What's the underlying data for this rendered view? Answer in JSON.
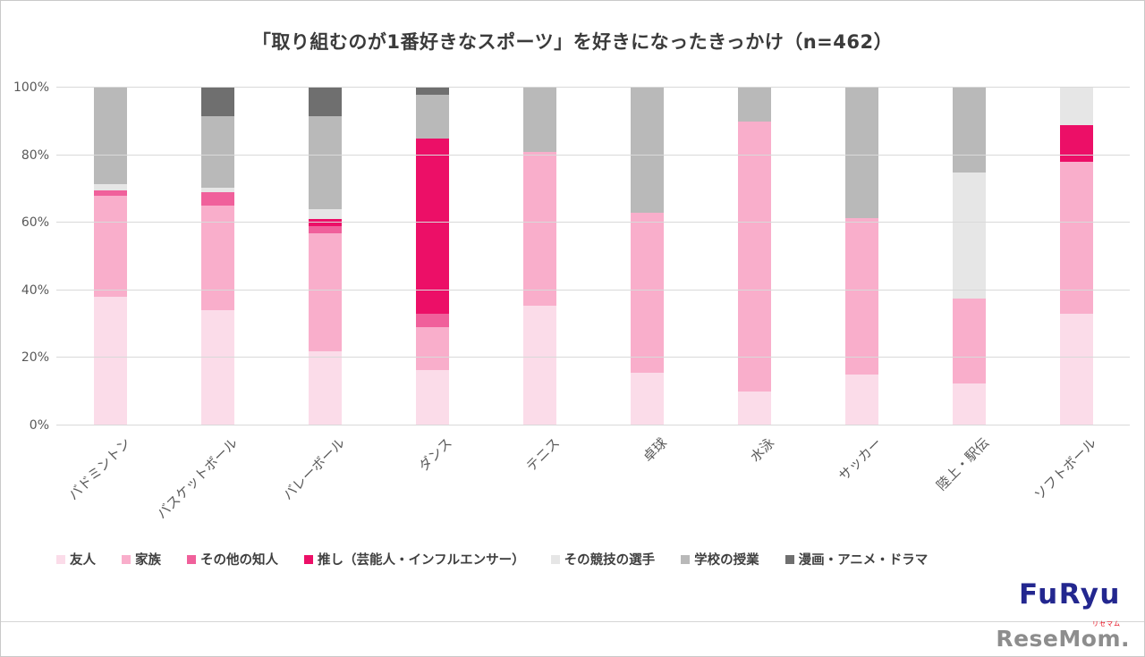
{
  "title": "「取り組むのが1番好きなスポーツ」を好きになったきっかけ（n=462）",
  "chart_data": {
    "type": "bar",
    "stacked": true,
    "percent_stacked": true,
    "unit": "%",
    "grid": true,
    "legend_position": "bottom",
    "ylim": [
      0,
      100
    ],
    "y_ticks": [
      "0%",
      "20%",
      "40%",
      "60%",
      "80%",
      "100%"
    ],
    "categories": [
      "バドミントン",
      "バスケットボール",
      "バレーボール",
      "ダンス",
      "テニス",
      "卓球",
      "水泳",
      "サッカー",
      "陸上・駅伝",
      "ソフトボール"
    ],
    "series": [
      {
        "name": "友人",
        "color": "#fbdce9",
        "values": [
          38,
          34,
          22,
          16.5,
          35.5,
          15.5,
          10,
          15,
          12.5,
          33
        ]
      },
      {
        "name": "家族",
        "color": "#f9aecb",
        "values": [
          30,
          31,
          35,
          12.5,
          45.5,
          47.5,
          80,
          46.5,
          25,
          45
        ]
      },
      {
        "name": "その他の知人",
        "color": "#f0609b",
        "values": [
          1.5,
          4,
          2,
          4,
          0,
          0,
          0,
          0,
          0,
          0
        ]
      },
      {
        "name": "推し（芸能人・インフルエンサー）",
        "color": "#ec0f67",
        "values": [
          0,
          0,
          2,
          52,
          0,
          0,
          0,
          0,
          0,
          11
        ]
      },
      {
        "name": "その競技の選手",
        "color": "#e6e6e6",
        "values": [
          2,
          1.5,
          3,
          0,
          0,
          0,
          0,
          0,
          37.5,
          11
        ]
      },
      {
        "name": "学校の授業",
        "color": "#b9b9b9",
        "values": [
          28.5,
          21,
          27.5,
          13,
          19,
          37,
          10,
          38.5,
          25,
          0
        ]
      },
      {
        "name": "漫画・アニメ・ドラマ",
        "color": "#6f6f6f",
        "values": [
          0,
          8.5,
          8.5,
          2,
          0,
          0,
          0,
          0,
          0,
          0
        ]
      }
    ]
  },
  "footer": {
    "furyu_logo": "FuRyu",
    "resemom_logo": "ReseMom.",
    "resemom_ruby": "リセマム"
  }
}
